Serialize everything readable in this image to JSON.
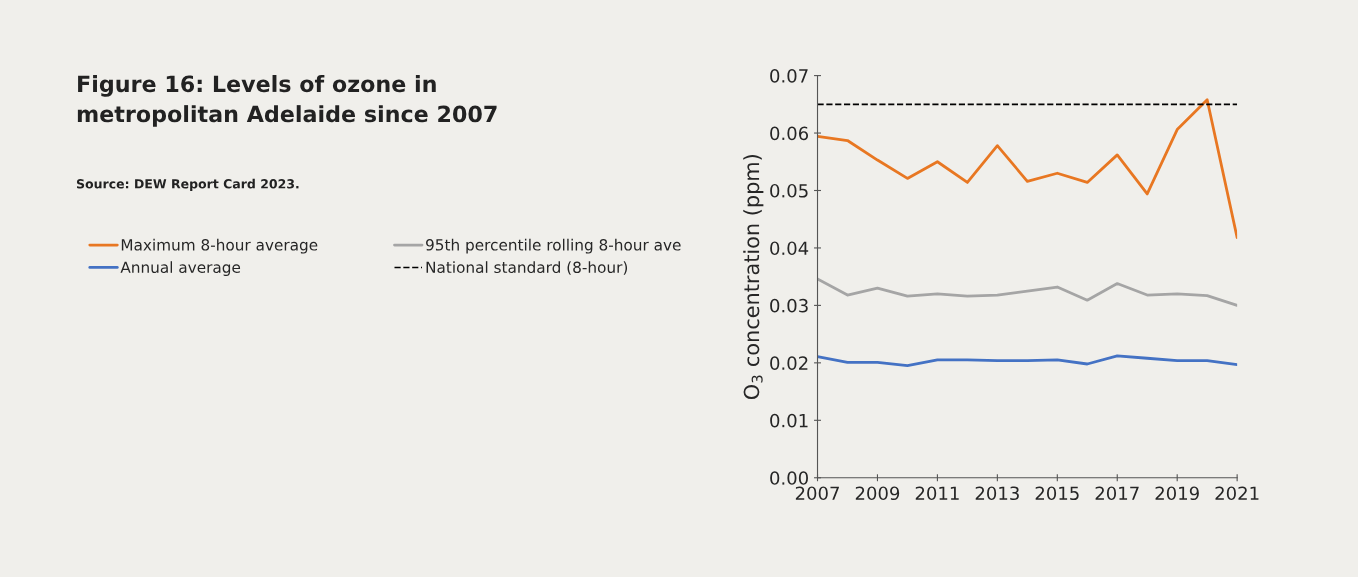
{
  "chart_data": {
    "type": "line",
    "title": "Figure 16: Levels of ozone in\nmetropolitan Adelaide since 2007",
    "annotations": [
      "Source: DEW Report Card 2023."
    ],
    "ylabel": "O$_{3}$ concentration (ppm)",
    "x": [
      2007,
      2008,
      2009,
      2010,
      2011,
      2012,
      2013,
      2014,
      2015,
      2016,
      2017,
      2018,
      2019,
      2020,
      2021
    ],
    "series": [
      {
        "name": "Maximum 8-hour average",
        "color": "#e87722",
        "values": [
          0.0594,
          0.0587,
          0.0553,
          0.0521,
          0.055,
          0.0514,
          0.0578,
          0.0516,
          0.053,
          0.0514,
          0.0562,
          0.0494,
          0.0606,
          0.0658,
          0.0418
        ]
      },
      {
        "name": "95th percentile rolling 8-hour ave",
        "color": "#a5a5a5",
        "values": [
          0.0346,
          0.0318,
          0.033,
          0.0316,
          0.032,
          0.0316,
          0.0318,
          0.0325,
          0.0332,
          0.0309,
          0.0338,
          0.0318,
          0.032,
          0.0317,
          0.03
        ]
      },
      {
        "name": "Annual average",
        "color": "#4472c4",
        "values": [
          0.0211,
          0.0201,
          0.0201,
          0.0195,
          0.0205,
          0.0205,
          0.0204,
          0.0204,
          0.0205,
          0.0198,
          0.0212,
          0.0208,
          0.0204,
          0.0204,
          0.0197
        ]
      }
    ],
    "ref_lines": [
      {
        "axis": "y",
        "value": 0.065,
        "label": "National standard (8-hour)",
        "color": "#000000",
        "line_style": "dashed"
      }
    ],
    "xlim": [
      2007,
      2021
    ],
    "xticks": [
      2007,
      2009,
      2011,
      2013,
      2015,
      2017,
      2019,
      2021
    ],
    "ylim": [
      0,
      0.07
    ],
    "yticks": [
      {
        "value": 0,
        "label": "0.00"
      },
      {
        "value": 0.01,
        "label": "0.01"
      },
      {
        "value": 0.02,
        "label": "0.02"
      },
      {
        "value": 0.03,
        "label": "0.03"
      },
      {
        "value": 0.04,
        "label": "0.04"
      },
      {
        "value": 0.05,
        "label": "0.05"
      },
      {
        "value": 0.06,
        "label": "0.06"
      },
      {
        "value": 0.07,
        "label": "0.07"
      }
    ],
    "grid": false,
    "legend": "left",
    "marker": "none",
    "line_style": "solid"
  }
}
